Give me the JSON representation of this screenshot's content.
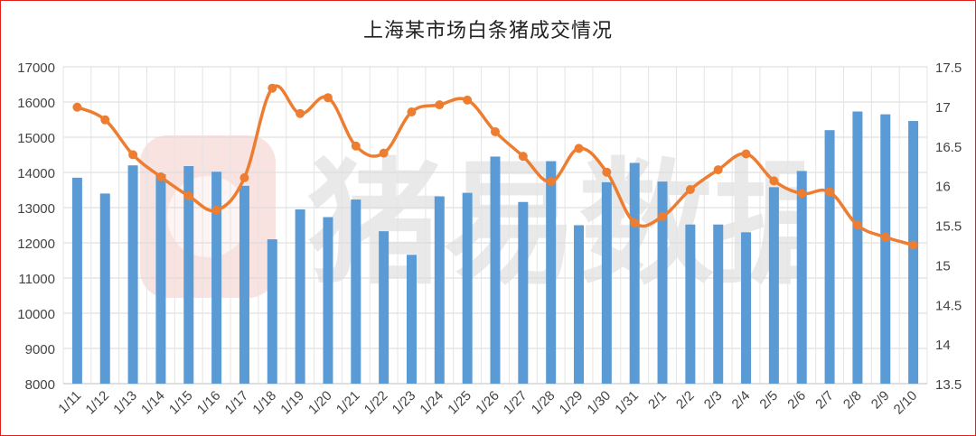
{
  "chart_data": {
    "type": "bar",
    "title": "上海某市场白条猪成交情况",
    "watermark": "猪易数据",
    "categories": [
      "1/11",
      "1/12",
      "1/13",
      "1/14",
      "1/15",
      "1/16",
      "1/17",
      "1/18",
      "1/19",
      "1/20",
      "1/21",
      "1/22",
      "1/23",
      "1/24",
      "1/25",
      "1/26",
      "1/27",
      "1/28",
      "1/29",
      "1/30",
      "1/31",
      "2/1",
      "2/2",
      "2/3",
      "2/4",
      "2/5",
      "2/6",
      "2/7",
      "2/8",
      "2/9",
      "2/10"
    ],
    "series": [
      {
        "type": "bar",
        "axis": "left",
        "color": "#5b9bd5",
        "values": [
          13850,
          13400,
          14200,
          13950,
          14180,
          14020,
          13620,
          12100,
          12950,
          12730,
          13230,
          12330,
          11660,
          13320,
          13420,
          14450,
          13160,
          14320,
          12500,
          13720,
          14270,
          13740,
          12520,
          12520,
          12300,
          13580,
          14040,
          15200,
          15730,
          15650,
          15460
        ]
      },
      {
        "type": "line",
        "axis": "right",
        "color": "#ed7d31",
        "values": [
          16.99,
          16.83,
          16.39,
          16.11,
          15.87,
          15.69,
          16.1,
          17.23,
          16.91,
          17.11,
          16.5,
          16.41,
          16.93,
          17.02,
          17.08,
          16.68,
          16.37,
          16.05,
          16.47,
          16.17,
          15.53,
          15.61,
          15.95,
          16.2,
          16.4,
          16.06,
          15.9,
          15.92,
          15.5,
          15.35,
          15.25
        ]
      }
    ],
    "ylim_left": [
      8000,
      17000
    ],
    "ylim_right": [
      13.5,
      17.5
    ],
    "yticks_left": [
      "8000",
      "9000",
      "10000",
      "11000",
      "12000",
      "13000",
      "14000",
      "15000",
      "16000",
      "17000"
    ],
    "yticks_right": [
      "13.5",
      "14",
      "14.5",
      "15",
      "15.5",
      "16",
      "16.5",
      "17",
      "17.5"
    ],
    "grid": true,
    "legend": "none"
  }
}
